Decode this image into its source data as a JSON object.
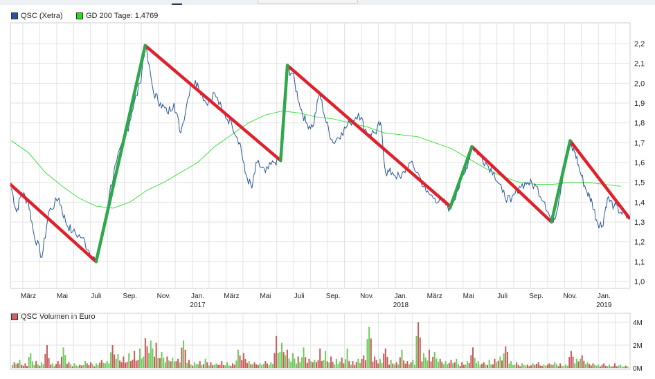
{
  "chart_data": [
    {
      "type": "line",
      "title": "",
      "legend": [
        {
          "name": "QSC (Xetra)",
          "color": "#2a5599"
        },
        {
          "name": "GD 200 Tage: 1,4769",
          "color": "#2ecc2e"
        }
      ],
      "ylim": [
        1.0,
        2.2
      ],
      "y_ticks": [
        "2,2",
        "2,1",
        "2,0",
        "1,9",
        "1,8",
        "1,7",
        "1,6",
        "1,5",
        "1,4",
        "1,3",
        "1,2",
        "1,1",
        "1,0"
      ],
      "x_unit": "months since Feb 2016",
      "xlim": [
        0,
        36.5
      ],
      "x_ticks": [
        {
          "m": 1,
          "label": "März"
        },
        {
          "m": 3,
          "label": "Mai"
        },
        {
          "m": 5,
          "label": "Juli"
        },
        {
          "m": 7,
          "label": "Sep."
        },
        {
          "m": 9,
          "label": "Nov."
        },
        {
          "m": 11,
          "label": "Jan.",
          "year": "2017"
        },
        {
          "m": 13,
          "label": "März"
        },
        {
          "m": 15,
          "label": "Mai"
        },
        {
          "m": 17,
          "label": "Juli"
        },
        {
          "m": 19,
          "label": "Sep."
        },
        {
          "m": 21,
          "label": "Nov."
        },
        {
          "m": 23,
          "label": "Jan.",
          "year": "2018"
        },
        {
          "m": 25,
          "label": "März"
        },
        {
          "m": 27,
          "label": "Mai"
        },
        {
          "m": 29,
          "label": "Juli"
        },
        {
          "m": 31,
          "label": "Sep."
        },
        {
          "m": 33,
          "label": "Nov."
        },
        {
          "m": 35,
          "label": "Jan.",
          "year": "2019"
        }
      ],
      "series": [
        {
          "name": "QSC (Xetra)",
          "points": [
            [
              0,
              1.47
            ],
            [
              0.3,
              1.35
            ],
            [
              0.6,
              1.45
            ],
            [
              1,
              1.4
            ],
            [
              1.3,
              1.25
            ],
            [
              1.8,
              1.12
            ],
            [
              2.2,
              1.35
            ],
            [
              2.8,
              1.42
            ],
            [
              3.2,
              1.3
            ],
            [
              3.6,
              1.25
            ],
            [
              4.2,
              1.22
            ],
            [
              4.6,
              1.15
            ],
            [
              5,
              1.1
            ],
            [
              5.3,
              1.2
            ],
            [
              5.8,
              1.45
            ],
            [
              6.2,
              1.6
            ],
            [
              6.8,
              1.75
            ],
            [
              7.1,
              1.85
            ],
            [
              7.6,
              2.0
            ],
            [
              7.9,
              2.19
            ],
            [
              8.4,
              1.95
            ],
            [
              8.8,
              1.9
            ],
            [
              9.2,
              1.85
            ],
            [
              9.6,
              1.9
            ],
            [
              10,
              1.75
            ],
            [
              10.6,
              2.0
            ],
            [
              11,
              2.0
            ],
            [
              11.5,
              1.9
            ],
            [
              12,
              1.95
            ],
            [
              12.5,
              1.85
            ],
            [
              13,
              1.8
            ],
            [
              13.5,
              1.7
            ],
            [
              13.8,
              1.55
            ],
            [
              14.2,
              1.47
            ],
            [
              14.5,
              1.6
            ],
            [
              15,
              1.55
            ],
            [
              15.5,
              1.6
            ],
            [
              15.9,
              1.62
            ],
            [
              16.3,
              2.07
            ],
            [
              16.6,
              2.05
            ],
            [
              17,
              1.9
            ],
            [
              17.4,
              1.8
            ],
            [
              17.8,
              1.78
            ],
            [
              18.2,
              1.95
            ],
            [
              18.6,
              1.8
            ],
            [
              19,
              1.7
            ],
            [
              19.5,
              1.75
            ],
            [
              20,
              1.8
            ],
            [
              20.5,
              1.85
            ],
            [
              21,
              1.75
            ],
            [
              21.5,
              1.75
            ],
            [
              21.8,
              1.8
            ],
            [
              22.1,
              1.55
            ],
            [
              22.5,
              1.55
            ],
            [
              23,
              1.52
            ],
            [
              23.5,
              1.6
            ],
            [
              24,
              1.55
            ],
            [
              24.5,
              1.45
            ],
            [
              25,
              1.42
            ],
            [
              25.5,
              1.4
            ],
            [
              25.9,
              1.37
            ],
            [
              26.3,
              1.45
            ],
            [
              26.8,
              1.55
            ],
            [
              27.2,
              1.68
            ],
            [
              27.6,
              1.65
            ],
            [
              28,
              1.6
            ],
            [
              28.5,
              1.55
            ],
            [
              29,
              1.45
            ],
            [
              29.5,
              1.4
            ],
            [
              30,
              1.48
            ],
            [
              30.5,
              1.5
            ],
            [
              31,
              1.48
            ],
            [
              31.5,
              1.4
            ],
            [
              31.9,
              1.3
            ],
            [
              32.2,
              1.35
            ],
            [
              32.6,
              1.55
            ],
            [
              33,
              1.68
            ],
            [
              33.3,
              1.65
            ],
            [
              33.6,
              1.55
            ],
            [
              34,
              1.45
            ],
            [
              34.3,
              1.4
            ],
            [
              34.6,
              1.3
            ],
            [
              34.9,
              1.28
            ],
            [
              35.2,
              1.42
            ],
            [
              35.6,
              1.38
            ],
            [
              36,
              1.35
            ],
            [
              36.4,
              1.32
            ]
          ]
        },
        {
          "name": "GD 200 Tage",
          "points": [
            [
              0,
              1.71
            ],
            [
              1,
              1.65
            ],
            [
              2,
              1.55
            ],
            [
              3,
              1.48
            ],
            [
              4,
              1.42
            ],
            [
              5,
              1.38
            ],
            [
              6,
              1.37
            ],
            [
              7,
              1.4
            ],
            [
              8,
              1.46
            ],
            [
              9,
              1.5
            ],
            [
              10,
              1.55
            ],
            [
              11,
              1.6
            ],
            [
              12,
              1.68
            ],
            [
              13,
              1.74
            ],
            [
              14,
              1.8
            ],
            [
              15,
              1.84
            ],
            [
              16,
              1.86
            ],
            [
              17,
              1.85
            ],
            [
              18,
              1.83
            ],
            [
              19,
              1.82
            ],
            [
              20,
              1.8
            ],
            [
              21,
              1.78
            ],
            [
              22,
              1.75
            ],
            [
              23,
              1.74
            ],
            [
              24,
              1.73
            ],
            [
              25,
              1.7
            ],
            [
              26,
              1.67
            ],
            [
              27,
              1.62
            ],
            [
              28,
              1.57
            ],
            [
              29,
              1.53
            ],
            [
              30,
              1.5
            ],
            [
              31,
              1.49
            ],
            [
              32,
              1.49
            ],
            [
              33,
              1.5
            ],
            [
              34,
              1.5
            ],
            [
              35,
              1.49
            ],
            [
              36,
              1.48
            ]
          ]
        }
      ],
      "trendlines": {
        "down": [
          [
            [
              -0.2,
              1.5
            ],
            [
              5,
              1.1
            ]
          ],
          [
            [
              7.9,
              2.19
            ],
            [
              15.9,
              1.61
            ]
          ],
          [
            [
              16.3,
              2.09
            ],
            [
              25.9,
              1.38
            ]
          ],
          [
            [
              27.2,
              1.68
            ],
            [
              31.9,
              1.3
            ]
          ],
          [
            [
              33,
              1.71
            ],
            [
              36.5,
              1.32
            ]
          ]
        ],
        "up": [
          [
            [
              5,
              1.1
            ],
            [
              7.9,
              2.19
            ]
          ],
          [
            [
              15.9,
              1.61
            ],
            [
              16.3,
              2.09
            ]
          ],
          [
            [
              25.9,
              1.37
            ],
            [
              27.2,
              1.68
            ]
          ],
          [
            [
              31.9,
              1.3
            ],
            [
              33,
              1.71
            ]
          ]
        ],
        "down_color": "#e0202a",
        "up_color": "#2ea84a"
      }
    },
    {
      "type": "bar",
      "title": "QSC Volumen in Euro",
      "legend": [
        {
          "name": "QSC Volumen in Euro",
          "color": "#c86464"
        }
      ],
      "ylim": [
        0,
        4
      ],
      "y_ticks": [
        "4M",
        "2M",
        "0M"
      ],
      "unit": "M EUR",
      "values": [
        0.5,
        0.7,
        0.4,
        1.3,
        0.6,
        0.5,
        2.0,
        0.4,
        0.6,
        1.8,
        0.5,
        0.4,
        0.3,
        0.6,
        0.5,
        0.4,
        0.7,
        0.6,
        2.0,
        1.2,
        1.0,
        1.3,
        1.5,
        1.7,
        2.6,
        2.4,
        2.2,
        1.4,
        1.0,
        0.9,
        0.8,
        2.4,
        0.7,
        0.5,
        0.6,
        0.8,
        0.5,
        0.4,
        0.6,
        0.5,
        0.4,
        1.6,
        1.3,
        0.6,
        0.5,
        0.4,
        0.6,
        0.5,
        2.8,
        2.2,
        1.6,
        1.3,
        1.0,
        1.8,
        0.8,
        0.7,
        1.7,
        1.5,
        1.0,
        0.8,
        0.9,
        1.7,
        0.6,
        0.8,
        1.1,
        3.6,
        1.0,
        0.8,
        1.7,
        0.7,
        0.5,
        1.6,
        0.6,
        0.7,
        4.0,
        1.3,
        1.6,
        1.4,
        0.8,
        0.6,
        0.7,
        0.8,
        0.5,
        0.6,
        1.8,
        0.6,
        0.5,
        0.7,
        0.8,
        1.0,
        1.9,
        0.6,
        0.5,
        0.4,
        0.3,
        0.4,
        0.5,
        0.3,
        0.4,
        0.5,
        0.4,
        0.3,
        1.5,
        0.8,
        1.1,
        0.5,
        0.4,
        0.3,
        0.4,
        0.3,
        0.4,
        0.3,
        0.2
      ],
      "colors": {
        "up": "#6dcc5a",
        "down": "#c85a5a"
      }
    }
  ]
}
